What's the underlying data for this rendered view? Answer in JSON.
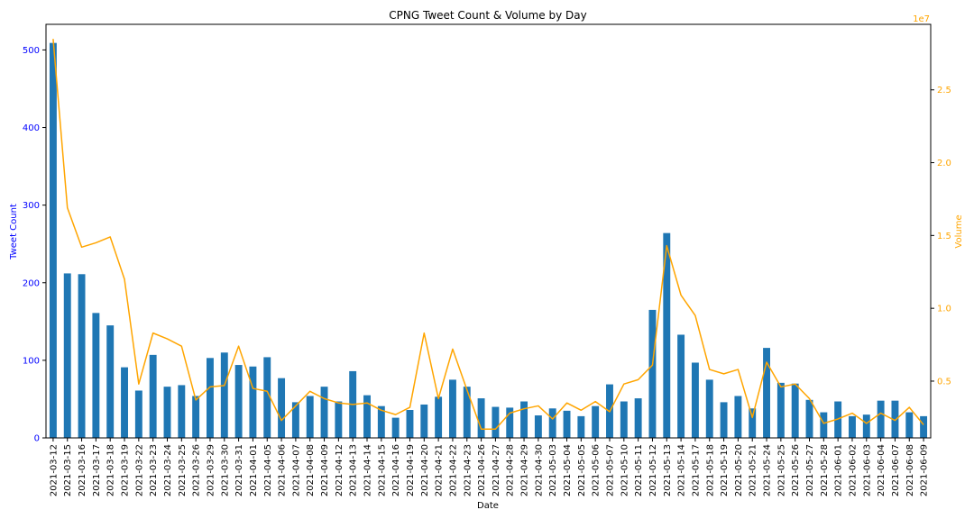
{
  "chart_data": {
    "type": "bar",
    "title": "CPNG Tweet Count & Volume by Day",
    "xlabel": "Date",
    "ylabel": "Tweet Count",
    "y2label": "Volume",
    "y2_offset_text": "1e7",
    "ylim": [
      0,
      533
    ],
    "y2lim": [
      0.11,
      2.95
    ],
    "yticks": [
      "0",
      "100",
      "200",
      "300",
      "400",
      "500"
    ],
    "y2ticks": [
      "0.5",
      "1.0",
      "1.5",
      "2.0",
      "2.5"
    ],
    "grid": false,
    "categories": [
      "2021-03-12",
      "2021-03-15",
      "2021-03-16",
      "2021-03-17",
      "2021-03-18",
      "2021-03-19",
      "2021-03-22",
      "2021-03-23",
      "2021-03-24",
      "2021-03-25",
      "2021-03-26",
      "2021-03-29",
      "2021-03-30",
      "2021-03-31",
      "2021-04-01",
      "2021-04-05",
      "2021-04-06",
      "2021-04-07",
      "2021-04-08",
      "2021-04-09",
      "2021-04-12",
      "2021-04-13",
      "2021-04-14",
      "2021-04-15",
      "2021-04-16",
      "2021-04-19",
      "2021-04-20",
      "2021-04-21",
      "2021-04-22",
      "2021-04-23",
      "2021-04-26",
      "2021-04-27",
      "2021-04-28",
      "2021-04-29",
      "2021-04-30",
      "2021-05-03",
      "2021-05-04",
      "2021-05-05",
      "2021-05-06",
      "2021-05-07",
      "2021-05-10",
      "2021-05-11",
      "2021-05-12",
      "2021-05-13",
      "2021-05-14",
      "2021-05-17",
      "2021-05-18",
      "2021-05-19",
      "2021-05-20",
      "2021-05-21",
      "2021-05-24",
      "2021-05-25",
      "2021-05-26",
      "2021-05-27",
      "2021-05-28",
      "2021-06-01",
      "2021-06-02",
      "2021-06-03",
      "2021-06-04",
      "2021-06-07",
      "2021-06-08",
      "2021-06-09"
    ],
    "series": [
      {
        "name": "Tweet Count",
        "chart": "bar",
        "axis": "left",
        "color": "#1f77b4",
        "values": [
          509,
          212,
          211,
          161,
          145,
          91,
          61,
          107,
          66,
          68,
          54,
          103,
          110,
          94,
          92,
          104,
          77,
          46,
          54,
          66,
          47,
          86,
          55,
          41,
          26,
          36,
          43,
          53,
          75,
          66,
          51,
          40,
          39,
          47,
          29,
          38,
          35,
          28,
          41,
          69,
          47,
          51,
          165,
          264,
          133,
          97,
          75,
          46,
          54,
          38,
          116,
          71,
          70,
          49,
          33,
          47,
          28,
          30,
          48,
          48,
          33,
          28
        ]
      },
      {
        "name": "Volume",
        "chart": "line",
        "axis": "right",
        "color": "#ffa500",
        "values": [
          2.85,
          1.69,
          1.42,
          1.45,
          1.49,
          1.2,
          0.48,
          0.83,
          0.79,
          0.74,
          0.37,
          0.46,
          0.47,
          0.74,
          0.45,
          0.43,
          0.23,
          0.33,
          0.43,
          0.38,
          0.35,
          0.34,
          0.35,
          0.3,
          0.27,
          0.32,
          0.83,
          0.38,
          0.72,
          0.44,
          0.17,
          0.17,
          0.28,
          0.31,
          0.33,
          0.24,
          0.35,
          0.3,
          0.36,
          0.29,
          0.48,
          0.51,
          0.61,
          1.43,
          1.09,
          0.95,
          0.58,
          0.55,
          0.58,
          0.25,
          0.63,
          0.46,
          0.48,
          0.38,
          0.21,
          0.24,
          0.28,
          0.21,
          0.28,
          0.23,
          0.32,
          0.2
        ]
      }
    ]
  },
  "colors": {
    "left_axis": "#0000ff",
    "right_axis": "#ffa500",
    "axis_line": "#000000"
  }
}
